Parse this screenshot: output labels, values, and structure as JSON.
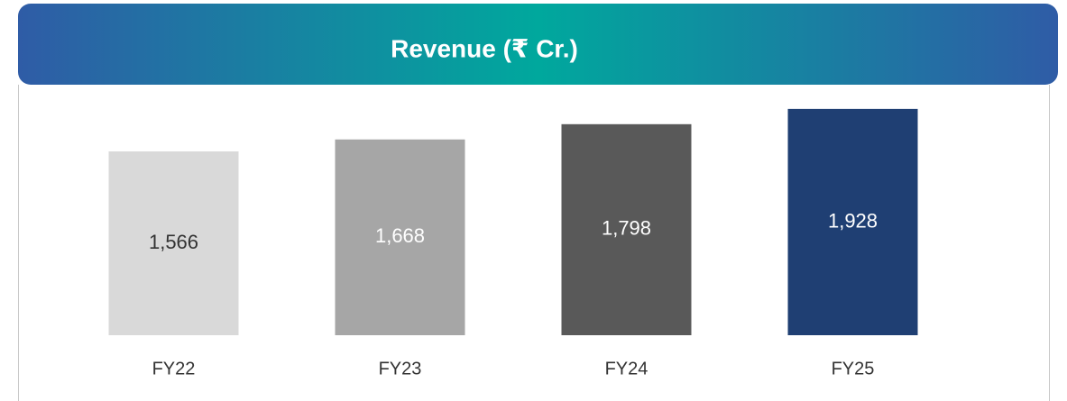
{
  "chart_data": {
    "type": "bar",
    "title": "Revenue (₹ Cr.)",
    "categories": [
      "FY22",
      "FY23",
      "FY24",
      "FY25"
    ],
    "values": [
      1566,
      1668,
      1798,
      1928
    ],
    "value_labels": [
      "1,566",
      "1,668",
      "1,798",
      "1,928"
    ],
    "colors": [
      "#d9d9d9",
      "#a6a6a6",
      "#595959",
      "#1f3f73"
    ],
    "ylim": [
      0,
      2000
    ]
  }
}
